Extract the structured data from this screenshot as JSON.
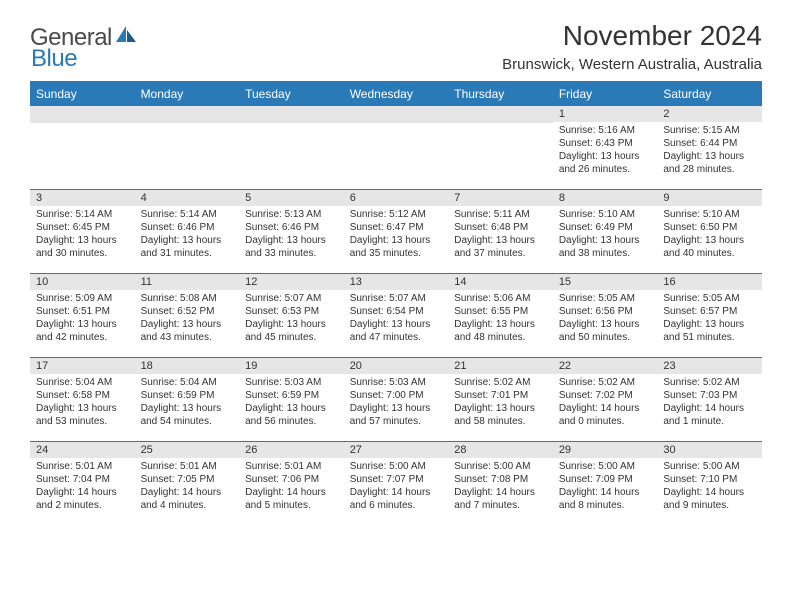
{
  "logo": {
    "part1": "General",
    "part2": "Blue"
  },
  "title": "November 2024",
  "location": "Brunswick, Western Australia, Australia",
  "colors": {
    "accent": "#2a7ab8",
    "header_bg": "#2a7ab8",
    "header_text": "#ffffff",
    "daynum_bg": "#e6e6e6",
    "text": "#333333",
    "logo_gray": "#4a4a4a",
    "logo_blue": "#2a7ab8",
    "page_bg": "#ffffff"
  },
  "day_headers": [
    "Sunday",
    "Monday",
    "Tuesday",
    "Wednesday",
    "Thursday",
    "Friday",
    "Saturday"
  ],
  "weeks": [
    [
      {
        "n": "",
        "sr": "",
        "ss": "",
        "dl": ""
      },
      {
        "n": "",
        "sr": "",
        "ss": "",
        "dl": ""
      },
      {
        "n": "",
        "sr": "",
        "ss": "",
        "dl": ""
      },
      {
        "n": "",
        "sr": "",
        "ss": "",
        "dl": ""
      },
      {
        "n": "",
        "sr": "",
        "ss": "",
        "dl": ""
      },
      {
        "n": "1",
        "sr": "Sunrise: 5:16 AM",
        "ss": "Sunset: 6:43 PM",
        "dl": "Daylight: 13 hours and 26 minutes."
      },
      {
        "n": "2",
        "sr": "Sunrise: 5:15 AM",
        "ss": "Sunset: 6:44 PM",
        "dl": "Daylight: 13 hours and 28 minutes."
      }
    ],
    [
      {
        "n": "3",
        "sr": "Sunrise: 5:14 AM",
        "ss": "Sunset: 6:45 PM",
        "dl": "Daylight: 13 hours and 30 minutes."
      },
      {
        "n": "4",
        "sr": "Sunrise: 5:14 AM",
        "ss": "Sunset: 6:46 PM",
        "dl": "Daylight: 13 hours and 31 minutes."
      },
      {
        "n": "5",
        "sr": "Sunrise: 5:13 AM",
        "ss": "Sunset: 6:46 PM",
        "dl": "Daylight: 13 hours and 33 minutes."
      },
      {
        "n": "6",
        "sr": "Sunrise: 5:12 AM",
        "ss": "Sunset: 6:47 PM",
        "dl": "Daylight: 13 hours and 35 minutes."
      },
      {
        "n": "7",
        "sr": "Sunrise: 5:11 AM",
        "ss": "Sunset: 6:48 PM",
        "dl": "Daylight: 13 hours and 37 minutes."
      },
      {
        "n": "8",
        "sr": "Sunrise: 5:10 AM",
        "ss": "Sunset: 6:49 PM",
        "dl": "Daylight: 13 hours and 38 minutes."
      },
      {
        "n": "9",
        "sr": "Sunrise: 5:10 AM",
        "ss": "Sunset: 6:50 PM",
        "dl": "Daylight: 13 hours and 40 minutes."
      }
    ],
    [
      {
        "n": "10",
        "sr": "Sunrise: 5:09 AM",
        "ss": "Sunset: 6:51 PM",
        "dl": "Daylight: 13 hours and 42 minutes."
      },
      {
        "n": "11",
        "sr": "Sunrise: 5:08 AM",
        "ss": "Sunset: 6:52 PM",
        "dl": "Daylight: 13 hours and 43 minutes."
      },
      {
        "n": "12",
        "sr": "Sunrise: 5:07 AM",
        "ss": "Sunset: 6:53 PM",
        "dl": "Daylight: 13 hours and 45 minutes."
      },
      {
        "n": "13",
        "sr": "Sunrise: 5:07 AM",
        "ss": "Sunset: 6:54 PM",
        "dl": "Daylight: 13 hours and 47 minutes."
      },
      {
        "n": "14",
        "sr": "Sunrise: 5:06 AM",
        "ss": "Sunset: 6:55 PM",
        "dl": "Daylight: 13 hours and 48 minutes."
      },
      {
        "n": "15",
        "sr": "Sunrise: 5:05 AM",
        "ss": "Sunset: 6:56 PM",
        "dl": "Daylight: 13 hours and 50 minutes."
      },
      {
        "n": "16",
        "sr": "Sunrise: 5:05 AM",
        "ss": "Sunset: 6:57 PM",
        "dl": "Daylight: 13 hours and 51 minutes."
      }
    ],
    [
      {
        "n": "17",
        "sr": "Sunrise: 5:04 AM",
        "ss": "Sunset: 6:58 PM",
        "dl": "Daylight: 13 hours and 53 minutes."
      },
      {
        "n": "18",
        "sr": "Sunrise: 5:04 AM",
        "ss": "Sunset: 6:59 PM",
        "dl": "Daylight: 13 hours and 54 minutes."
      },
      {
        "n": "19",
        "sr": "Sunrise: 5:03 AM",
        "ss": "Sunset: 6:59 PM",
        "dl": "Daylight: 13 hours and 56 minutes."
      },
      {
        "n": "20",
        "sr": "Sunrise: 5:03 AM",
        "ss": "Sunset: 7:00 PM",
        "dl": "Daylight: 13 hours and 57 minutes."
      },
      {
        "n": "21",
        "sr": "Sunrise: 5:02 AM",
        "ss": "Sunset: 7:01 PM",
        "dl": "Daylight: 13 hours and 58 minutes."
      },
      {
        "n": "22",
        "sr": "Sunrise: 5:02 AM",
        "ss": "Sunset: 7:02 PM",
        "dl": "Daylight: 14 hours and 0 minutes."
      },
      {
        "n": "23",
        "sr": "Sunrise: 5:02 AM",
        "ss": "Sunset: 7:03 PM",
        "dl": "Daylight: 14 hours and 1 minute."
      }
    ],
    [
      {
        "n": "24",
        "sr": "Sunrise: 5:01 AM",
        "ss": "Sunset: 7:04 PM",
        "dl": "Daylight: 14 hours and 2 minutes."
      },
      {
        "n": "25",
        "sr": "Sunrise: 5:01 AM",
        "ss": "Sunset: 7:05 PM",
        "dl": "Daylight: 14 hours and 4 minutes."
      },
      {
        "n": "26",
        "sr": "Sunrise: 5:01 AM",
        "ss": "Sunset: 7:06 PM",
        "dl": "Daylight: 14 hours and 5 minutes."
      },
      {
        "n": "27",
        "sr": "Sunrise: 5:00 AM",
        "ss": "Sunset: 7:07 PM",
        "dl": "Daylight: 14 hours and 6 minutes."
      },
      {
        "n": "28",
        "sr": "Sunrise: 5:00 AM",
        "ss": "Sunset: 7:08 PM",
        "dl": "Daylight: 14 hours and 7 minutes."
      },
      {
        "n": "29",
        "sr": "Sunrise: 5:00 AM",
        "ss": "Sunset: 7:09 PM",
        "dl": "Daylight: 14 hours and 8 minutes."
      },
      {
        "n": "30",
        "sr": "Sunrise: 5:00 AM",
        "ss": "Sunset: 7:10 PM",
        "dl": "Daylight: 14 hours and 9 minutes."
      }
    ]
  ]
}
